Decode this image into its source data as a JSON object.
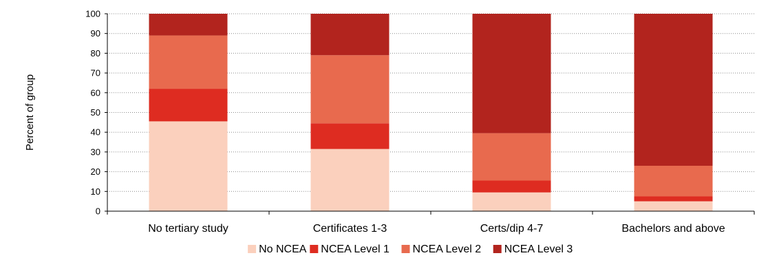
{
  "chart_data": {
    "type": "bar",
    "stacked": true,
    "ylabel": "Percent of group",
    "xlabel": "",
    "ylim": [
      0,
      100
    ],
    "yticks": [
      0,
      10,
      20,
      30,
      40,
      50,
      60,
      70,
      80,
      90,
      100
    ],
    "categories": [
      "No tertiary study",
      "Certificates 1-3",
      "Certs/dip 4-7",
      "Bachelors and above"
    ],
    "series": [
      {
        "name": "No NCEA",
        "color": "#fbd0bd",
        "values": [
          45.5,
          31.5,
          9.5,
          5
        ]
      },
      {
        "name": "NCEA Level 1",
        "color": "#de2c21",
        "values": [
          16.5,
          13,
          6,
          2.5
        ]
      },
      {
        "name": "NCEA Level 2",
        "color": "#e86a4e",
        "values": [
          27,
          34.5,
          24,
          15.5
        ]
      },
      {
        "name": "NCEA Level 3",
        "color": "#b2241e",
        "values": [
          11,
          21,
          60.5,
          77
        ]
      }
    ],
    "grid": "horizontal dotted",
    "legend_position": "bottom"
  }
}
